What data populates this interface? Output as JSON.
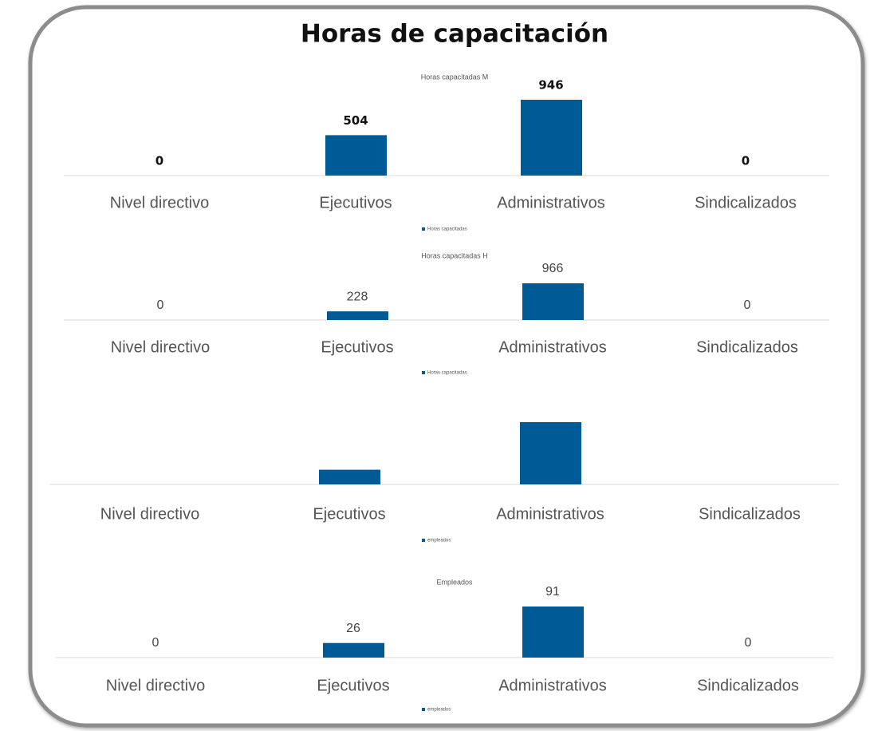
{
  "title": "Horas de capacitación",
  "chart_data": [
    {
      "type": "bar",
      "title": "Horas capacitadas M",
      "categories": [
        "Nivel directivo",
        "Ejecutivos",
        "Administrativos",
        "Sindicalizados"
      ],
      "series": [
        {
          "name": "Horas capacitadas",
          "color": "#005a96",
          "values": [
            0,
            504,
            946,
            0
          ]
        }
      ],
      "data_labels": true
    },
    {
      "type": "bar",
      "title": "Horas capacitadas H",
      "categories": [
        "Nivel directivo",
        "Ejecutivos",
        "Administrativos",
        "Sindicalizados"
      ],
      "series": [
        {
          "name": "Horas capacitadas",
          "color": "#005a96",
          "values": [
            0,
            228,
            966,
            0
          ]
        }
      ],
      "data_labels": true
    },
    {
      "type": "bar",
      "categories": [
        "Nivel directivo",
        "Ejecutivos",
        "Administrativos",
        "Sindicalizados"
      ],
      "series": [
        {
          "name": "empleados",
          "color": "#005a96",
          "values": [
            0,
            228,
            966,
            0
          ]
        }
      ],
      "data_labels": false
    },
    {
      "type": "bar",
      "title": "Empleados",
      "categories": [
        "Nivel directivo",
        "Ejecutivos",
        "Administrativos",
        "Sindicalizados"
      ],
      "series": [
        {
          "name": "empleados",
          "color": "#005a96",
          "values": [
            0,
            26,
            91,
            0
          ]
        }
      ],
      "data_labels": true
    }
  ]
}
